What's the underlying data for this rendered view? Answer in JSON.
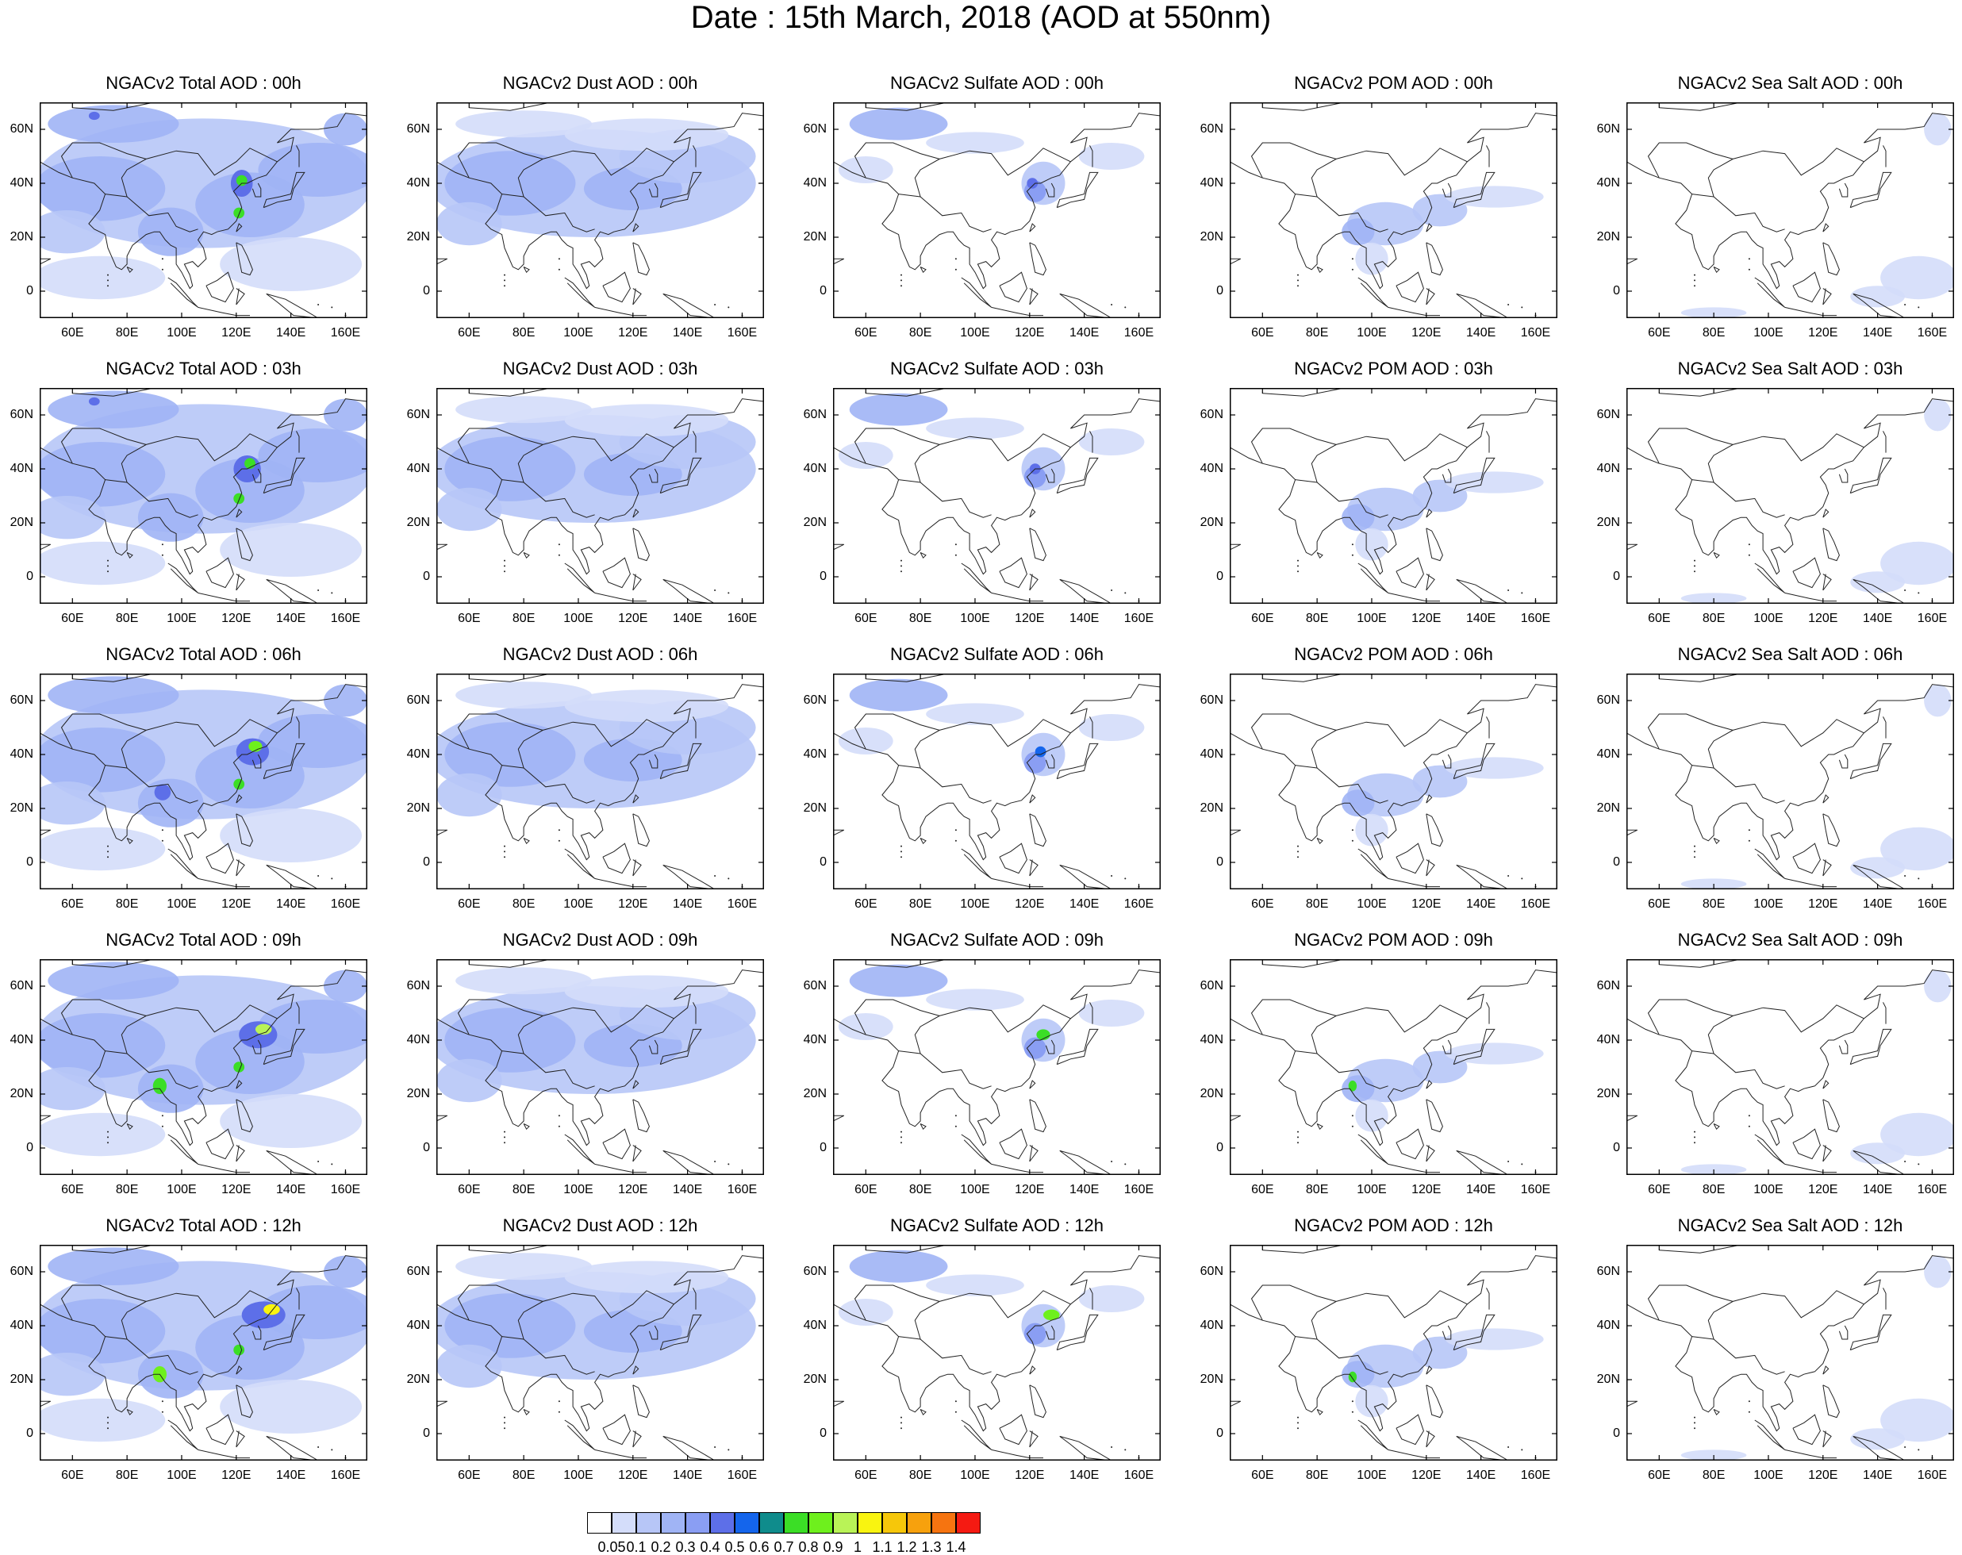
{
  "title": "Date : 15th March, 2018 (AOD at 550nm)",
  "panel_titles": [
    [
      "NGACv2 Total AOD : 00h",
      "NGACv2 Dust AOD : 00h",
      "NGACv2 Sulfate AOD : 00h",
      "NGACv2 POM AOD : 00h",
      "NGACv2 Sea Salt AOD : 00h"
    ],
    [
      "NGACv2 Total AOD : 03h",
      "NGACv2 Dust AOD : 03h",
      "NGACv2 Sulfate AOD : 03h",
      "NGACv2 POM AOD : 03h",
      "NGACv2 Sea Salt AOD : 03h"
    ],
    [
      "NGACv2 Total AOD : 06h",
      "NGACv2 Dust AOD : 06h",
      "NGACv2 Sulfate AOD : 06h",
      "NGACv2 POM AOD : 06h",
      "NGACv2 Sea Salt AOD : 06h"
    ],
    [
      "NGACv2 Total AOD : 09h",
      "NGACv2 Dust AOD : 09h",
      "NGACv2 Sulfate AOD : 09h",
      "NGACv2 POM AOD : 09h",
      "NGACv2 Sea Salt  AOD : 09h"
    ],
    [
      "NGACv2 Total AOD  : 12h",
      "NGACv2 Dust AOD : 12h",
      "NGACv2 Sulfate AOD : 12h",
      "NGACv2 POM  AOD : 12h",
      "NGACv2 Sea Salt  AOD : 12h"
    ]
  ],
  "map": {
    "lon_range": [
      48,
      168
    ],
    "lat_range": [
      -10,
      70
    ],
    "lon_ticks": [
      60,
      80,
      100,
      120,
      140,
      160
    ],
    "lon_tick_labels": [
      "60E",
      "80E",
      "100E",
      "120E",
      "140E",
      "160E"
    ],
    "lat_ticks": [
      60,
      40,
      20,
      0
    ],
    "lat_tick_labels": [
      "60N",
      "40N",
      "20N",
      "0"
    ]
  },
  "colorbar": {
    "colors": [
      "#ffffff",
      "#d4ddfa",
      "#b7c6f7",
      "#a0b4f5",
      "#8a9ef3",
      "#5d6fe8",
      "#1465ec",
      "#0f8c8c",
      "#3bde26",
      "#6ef01d",
      "#b9f357",
      "#f9f410",
      "#f6c70a",
      "#f7a10d",
      "#f67410",
      "#f51a12"
    ],
    "labels": [
      "0.05",
      "0.1",
      "0.2",
      "0.3",
      "0.4",
      "0.5",
      "0.6",
      "0.7",
      "0.8",
      "0.9",
      "1",
      "1.1",
      "1.2",
      "1.3",
      "1.4"
    ]
  }
}
